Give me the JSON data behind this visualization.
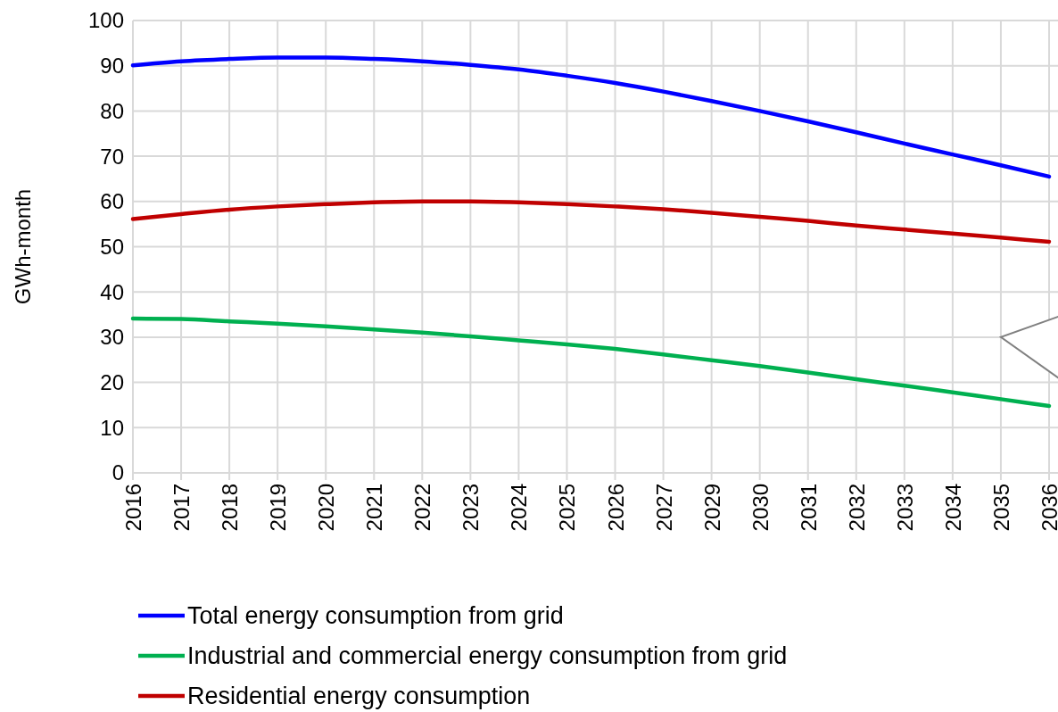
{
  "chart_data": {
    "type": "line",
    "ylabel": "GWh-month",
    "categories": [
      "2016",
      "2017",
      "2018",
      "2019",
      "2020",
      "2021",
      "2022",
      "2023",
      "2024",
      "2025",
      "2026",
      "2027",
      "2029",
      "2030",
      "2031",
      "2032",
      "2033",
      "2034",
      "2035",
      "2036"
    ],
    "series": [
      {
        "name": "Total energy consumption from grid",
        "color": "#0000ff",
        "values": [
          90.1,
          91,
          91.5,
          91.8,
          91.8,
          91.5,
          91,
          90.2,
          89.2,
          87.8,
          86.2,
          84.3,
          82.2,
          80.0,
          77.7,
          75.3,
          72.8,
          70.4,
          68,
          65.5
        ]
      },
      {
        "name": "Industrial and commercial energy consumption from grid",
        "color": "#00b050",
        "values": [
          34.1,
          34,
          33.5,
          33,
          32.4,
          31.7,
          31,
          30.2,
          29.3,
          28.4,
          27.4,
          26.2,
          24.9,
          23.6,
          22.2,
          20.7,
          19.3,
          17.8,
          16.3,
          14.8
        ]
      },
      {
        "name": "Residential energy consumption",
        "color": "#c00000",
        "values": [
          56.1,
          57.2,
          58.2,
          58.9,
          59.4,
          59.8,
          60,
          60,
          59.8,
          59.4,
          58.9,
          58.3,
          57.5,
          56.6,
          55.7,
          54.7,
          53.8,
          52.9,
          52,
          51.1
        ]
      }
    ],
    "ylim": [
      0,
      100
    ],
    "yticks": [
      0,
      10,
      20,
      30,
      40,
      50,
      60,
      70,
      80,
      90,
      100
    ],
    "grid": true,
    "legend": "bottom",
    "marker": "none",
    "line_style": "solid"
  }
}
